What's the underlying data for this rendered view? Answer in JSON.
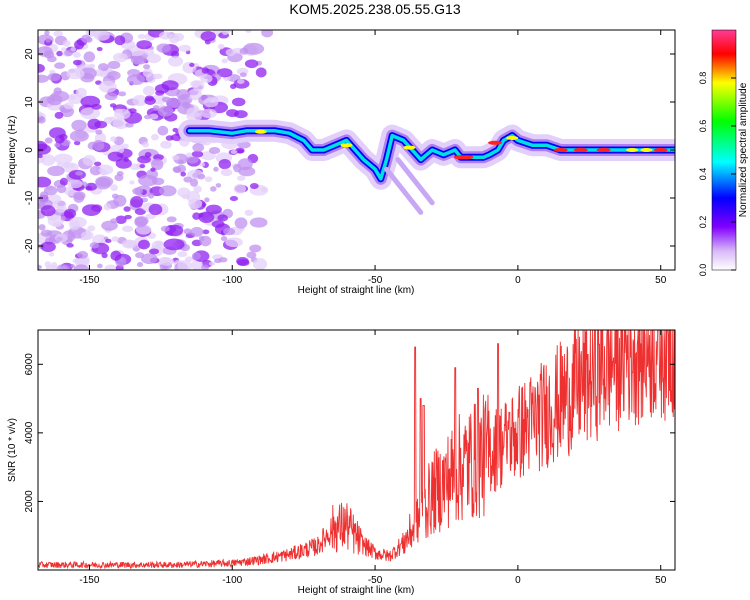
{
  "title": "KOM5.2025.238.05.55.G13",
  "chart_data": [
    {
      "type": "heatmap",
      "name": "spectrogram",
      "xlabel": "Height of straight line (km)",
      "ylabel": "Frequency (Hz)",
      "xlim": [
        -168,
        55
      ],
      "ylim": [
        -25,
        25
      ],
      "xticks": [
        -150,
        -100,
        -50,
        0,
        50
      ],
      "yticks": [
        -20,
        -10,
        0,
        10,
        20
      ],
      "colorbar": {
        "label": "Normalized spectral amplitude",
        "range": [
          0,
          1
        ],
        "ticks": [
          0.0,
          0.2,
          0.4,
          0.6,
          0.8
        ],
        "colors": [
          "#ffffff",
          "#d8b8f8",
          "#8000ff",
          "#0000ff",
          "#00ffff",
          "#00ff00",
          "#ffff00",
          "#ff0000"
        ]
      },
      "ridge": [
        [
          -115,
          4
        ],
        [
          -108,
          4
        ],
        [
          -100,
          3.5
        ],
        [
          -95,
          4
        ],
        [
          -90,
          4
        ],
        [
          -85,
          4
        ],
        [
          -80,
          3.5
        ],
        [
          -75,
          2
        ],
        [
          -72,
          0
        ],
        [
          -68,
          0
        ],
        [
          -64,
          1
        ],
        [
          -60,
          2
        ],
        [
          -57,
          0
        ],
        [
          -54,
          -2
        ],
        [
          -50,
          -4
        ],
        [
          -48,
          -6
        ],
        [
          -46,
          -2
        ],
        [
          -44,
          3
        ],
        [
          -40,
          2
        ],
        [
          -37,
          0
        ],
        [
          -34,
          -2
        ],
        [
          -32,
          -1
        ],
        [
          -30,
          0
        ],
        [
          -26,
          -1
        ],
        [
          -22,
          0
        ],
        [
          -20,
          -1.5
        ],
        [
          -16,
          -1.5
        ],
        [
          -12,
          -1.5
        ],
        [
          -10,
          -1
        ],
        [
          -7,
          0
        ],
        [
          -5,
          2
        ],
        [
          -2,
          3
        ],
        [
          0,
          2
        ],
        [
          5,
          1
        ],
        [
          10,
          1
        ],
        [
          15,
          0
        ],
        [
          20,
          0
        ],
        [
          30,
          0
        ],
        [
          40,
          0
        ],
        [
          50,
          0
        ],
        [
          55,
          0
        ]
      ]
    },
    {
      "type": "line",
      "name": "snr",
      "xlabel": "Height of straight line (km)",
      "ylabel": "SNR (10 * v/v)",
      "xlim": [
        -168,
        55
      ],
      "ylim": [
        0,
        7000
      ],
      "xticks": [
        -150,
        -100,
        -50,
        0,
        50
      ],
      "yticks": [
        2000,
        4000,
        6000
      ],
      "color": "#ee3030",
      "envelope": [
        [
          -168,
          150
        ],
        [
          -120,
          150
        ],
        [
          -100,
          200
        ],
        [
          -90,
          300
        ],
        [
          -80,
          450
        ],
        [
          -70,
          700
        ],
        [
          -65,
          1200
        ],
        [
          -60,
          1300
        ],
        [
          -55,
          800
        ],
        [
          -50,
          500
        ],
        [
          -45,
          400
        ],
        [
          -40,
          800
        ],
        [
          -35,
          1400
        ],
        [
          -30,
          2200
        ],
        [
          -25,
          2600
        ],
        [
          -20,
          3000
        ],
        [
          -10,
          3400
        ],
        [
          0,
          4000
        ],
        [
          10,
          4600
        ],
        [
          20,
          5300
        ],
        [
          30,
          6000
        ],
        [
          40,
          6500
        ],
        [
          55,
          6800
        ]
      ],
      "spikes": [
        [
          -36,
          6500
        ],
        [
          -34,
          5000
        ],
        [
          -33,
          4800
        ],
        [
          -22,
          5900
        ],
        [
          -14,
          5300
        ],
        [
          -7,
          6600
        ],
        [
          -3,
          4600
        ]
      ]
    }
  ]
}
